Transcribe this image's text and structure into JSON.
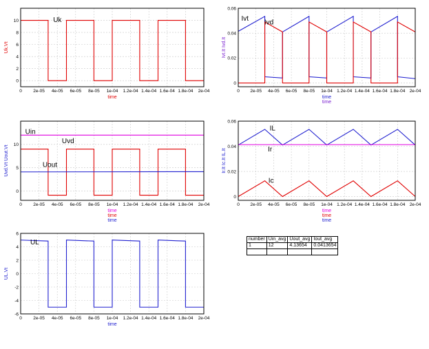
{
  "chart_data": [
    {
      "type": "line",
      "ylabel": "Uk.Vt",
      "xlabel": [
        "time"
      ],
      "xlim": [
        0,
        0.0002
      ],
      "ylim": [
        -1,
        12
      ],
      "yticks": [
        0,
        2,
        4,
        6,
        8,
        10
      ],
      "ytick_labels": [
        "0",
        "2",
        "4",
        "6",
        "8",
        "10"
      ],
      "xtick_labels": [
        "0",
        "2e-05",
        "4e-05",
        "6e-05",
        "8e-05",
        "1e-04",
        "1.2e-04",
        "1.4e-04",
        "1.6e-04",
        "1.8e-04",
        "2e-04"
      ],
      "series": [
        {
          "name": "Uk",
          "color": "#e00000",
          "x": [
            0,
            3e-05,
            3e-05,
            5e-05,
            5e-05,
            8e-05,
            8e-05,
            0.0001,
            0.0001,
            0.00013,
            0.00013,
            0.00015,
            0.00015,
            0.00018,
            0.00018,
            0.0002
          ],
          "y": [
            10,
            10,
            0,
            0,
            10,
            10,
            0,
            0,
            10,
            10,
            0,
            0,
            10,
            10,
            0,
            0
          ]
        }
      ],
      "annotations": [
        {
          "text": "Uk",
          "x": 3.55e-05,
          "y": 9.7
        }
      ]
    },
    {
      "type": "line",
      "ylabel": "Ivt.It Ivd.It",
      "xlabel": [
        "time",
        "time"
      ],
      "xlim": [
        0,
        0.0002
      ],
      "ylim": [
        -0.003,
        0.06
      ],
      "yticks": [
        0,
        0.02,
        0.04,
        0.06
      ],
      "ytick_labels": [
        "0",
        "0.02",
        "0.04",
        "0.06"
      ],
      "xtick_labels": [
        "0",
        "2e-05",
        "4e-05",
        "6e-05",
        "8e-05",
        "1e-04",
        "1.2e-04",
        "1.4e-04",
        "1.6e-04",
        "1.8e-04",
        "2e-04"
      ],
      "series": [
        {
          "name": "Ivt",
          "color": "#2020d0",
          "x": [
            0,
            3e-05,
            3e-05,
            5e-05,
            5e-05,
            8e-05,
            8e-05,
            0.0001,
            0.0001,
            0.00013,
            0.00013,
            0.00015,
            0.00015,
            0.00018,
            0.00018,
            0.0002
          ],
          "y": [
            0.0415,
            0.0535,
            0.005,
            0.004,
            0.041,
            0.0535,
            0.005,
            0.004,
            0.041,
            0.0535,
            0.005,
            0.004,
            0.041,
            0.0535,
            0.005,
            0.0035
          ]
        },
        {
          "name": "Ivd",
          "color": "#e00000",
          "x": [
            0,
            3e-05,
            3e-05,
            5e-05,
            5e-05,
            8e-05,
            8e-05,
            0.0001,
            0.0001,
            0.00013,
            0.00013,
            0.00015,
            0.00015,
            0.00018,
            0.00018,
            0.0002
          ],
          "y": [
            0,
            0,
            0.049,
            0.041,
            0,
            0,
            0.049,
            0.041,
            0,
            0,
            0.049,
            0.041,
            0,
            0,
            0.049,
            0.041
          ]
        }
      ],
      "annotations": [
        {
          "text": "Ivt",
          "x": 3.5e-06,
          "y": 0.05
        },
        {
          "text": "Ivd",
          "x": 2.95e-05,
          "y": 0.047
        }
      ]
    },
    {
      "type": "line",
      "ylabel": "Uvd.Vt Uout.Vt",
      "xlabel": [
        "time",
        "time",
        "time"
      ],
      "xlim": [
        0,
        0.0002
      ],
      "ylim": [
        -2,
        15
      ],
      "yticks": [
        0,
        5,
        10
      ],
      "ytick_labels": [
        "0",
        "5",
        "10"
      ],
      "xtick_labels": [
        "0",
        "2e-05",
        "4e-05",
        "6e-05",
        "8e-05",
        "1e-04",
        "1.2e-04",
        "1.4e-04",
        "1.6e-04",
        "1.8e-04",
        "2e-04"
      ],
      "series": [
        {
          "name": "Uin",
          "color": "#e000e0",
          "x": [
            0,
            0.0002
          ],
          "y": [
            12,
            12
          ]
        },
        {
          "name": "Uvd",
          "color": "#e00000",
          "x": [
            0,
            3e-05,
            3e-05,
            5e-05,
            5e-05,
            8e-05,
            8e-05,
            0.0001,
            0.0001,
            0.00013,
            0.00013,
            0.00015,
            0.00015,
            0.00018,
            0.00018,
            0.0002
          ],
          "y": [
            9,
            9,
            -0.9,
            -0.9,
            9,
            9,
            -0.9,
            -0.9,
            9,
            9,
            -0.9,
            -0.9,
            9,
            9,
            -0.9,
            -0.9
          ]
        },
        {
          "name": "Uout",
          "color": "#2020d0",
          "x": [
            0,
            0.0002
          ],
          "y": [
            4.1,
            4.15
          ]
        }
      ],
      "annotations": [
        {
          "text": "Uin",
          "x": 5e-06,
          "y": 12.3
        },
        {
          "text": "Uvd",
          "x": 4.5e-05,
          "y": 10.3
        },
        {
          "text": "Uout",
          "x": 2.4e-05,
          "y": 5.2
        }
      ]
    },
    {
      "type": "line",
      "ylabel": "Ir.It Ic.It IL.It",
      "xlabel": [
        "time",
        "time",
        "time"
      ],
      "xlim": [
        0,
        0.0002
      ],
      "ylim": [
        -0.003,
        0.06
      ],
      "yticks": [
        0,
        0.02,
        0.04,
        0.06
      ],
      "ytick_labels": [
        "0",
        "0.02",
        "0.04",
        "0.06"
      ],
      "xtick_labels": [
        "0",
        "2e-05",
        "4e-05",
        "6e-05",
        "8e-05",
        "1e-04",
        "1.2e-04",
        "1.4e-04",
        "1.6e-04",
        "1.8e-04",
        "2e-04"
      ],
      "series": [
        {
          "name": "IL",
          "color": "#2020d0",
          "x": [
            0,
            3e-05,
            5e-05,
            8e-05,
            0.0001,
            0.00013,
            0.00015,
            0.00018,
            0.0002
          ],
          "y": [
            0.041,
            0.0535,
            0.041,
            0.0535,
            0.041,
            0.0535,
            0.041,
            0.0535,
            0.041
          ]
        },
        {
          "name": "Ir",
          "color": "#e000e0",
          "x": [
            0,
            0.0002
          ],
          "y": [
            0.0413,
            0.0413
          ]
        },
        {
          "name": "Ic",
          "color": "#e00000",
          "x": [
            0,
            3e-05,
            5e-05,
            8e-05,
            0.0001,
            0.00013,
            0.00015,
            0.00018,
            0.0002
          ],
          "y": [
            0,
            0.0125,
            0,
            0.0125,
            0,
            0.0125,
            0,
            0.0125,
            0
          ]
        }
      ],
      "annotations": [
        {
          "text": "IL",
          "x": 3.55e-05,
          "y": 0.0525
        },
        {
          "text": "Ir",
          "x": 3.35e-05,
          "y": 0.036
        },
        {
          "text": "Ic",
          "x": 3.4e-05,
          "y": 0.011
        }
      ]
    },
    {
      "type": "line",
      "ylabel": "UL.Vt",
      "xlabel": [
        "time"
      ],
      "xlim": [
        0,
        0.0002
      ],
      "ylim": [
        -6,
        6
      ],
      "yticks": [
        -6,
        -4,
        -2,
        0,
        2,
        4,
        6
      ],
      "ytick_labels": [
        "-6",
        "-4",
        "-2",
        "0",
        "2",
        "4",
        "6"
      ],
      "xtick_labels": [
        "0",
        "2e-05",
        "4e-05",
        "6e-05",
        "8e-05",
        "1e-04",
        "1.2e-04",
        "1.4e-04",
        "1.6e-04",
        "1.8e-04",
        "2e-04"
      ],
      "series": [
        {
          "name": "UL",
          "color": "#2020d0",
          "x": [
            0,
            3e-05,
            3e-05,
            5e-05,
            5e-05,
            8e-05,
            8e-05,
            0.0001,
            0.0001,
            0.00013,
            0.00013,
            0.00015,
            0.00015,
            0.00018,
            0.00018,
            0.0002
          ],
          "y": [
            5,
            4.85,
            -5,
            -5,
            5,
            4.85,
            -5,
            -5,
            5,
            4.85,
            -5,
            -5,
            5,
            4.85,
            -5,
            -5
          ]
        }
      ],
      "annotations": [
        {
          "text": "UL",
          "x": 1.05e-05,
          "y": 4.35
        }
      ]
    },
    {
      "type": "table",
      "columns": [
        "number",
        "Uin_avg",
        "Uout_avg",
        "Iout_avg"
      ],
      "rows": [
        [
          "1",
          "12",
          "4.13654",
          "0.0413654"
        ],
        [
          "",
          "",
          "",
          ""
        ]
      ]
    }
  ]
}
